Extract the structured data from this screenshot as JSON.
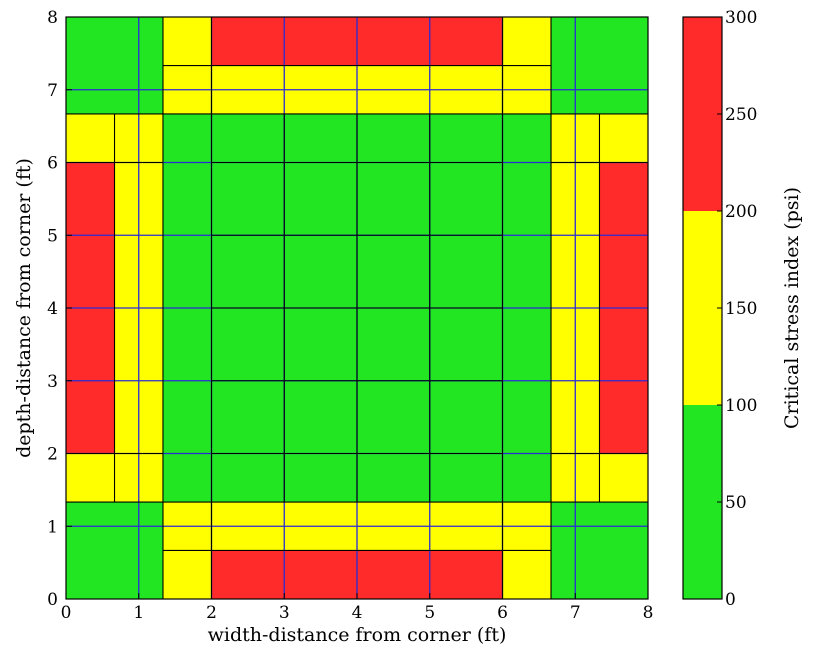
{
  "chart_data": {
    "type": "heatmap",
    "xlabel": "width-distance from corner (ft)",
    "ylabel": "depth-distance from corner (ft)",
    "xlim": [
      0,
      8
    ],
    "ylim": [
      0,
      8
    ],
    "x_ticks": [
      "0",
      "1",
      "2",
      "3",
      "4",
      "5",
      "6",
      "7",
      "8"
    ],
    "y_ticks": [
      "0",
      "1",
      "2",
      "3",
      "4",
      "5",
      "6",
      "7",
      "8"
    ],
    "grid": true,
    "grid_color": "#2b2bd6",
    "colors": {
      "green": "#22e622",
      "yellow": "#ffff00",
      "red": "#ff2a2a"
    },
    "colorbar": {
      "label": "Critical stress index (psi)",
      "range": [
        0,
        300
      ],
      "ticks": [
        "0",
        "50",
        "100",
        "150",
        "200",
        "250",
        "300"
      ],
      "bands": [
        {
          "from": 0,
          "to": 100,
          "color": "green"
        },
        {
          "from": 100,
          "to": 200,
          "color": "yellow"
        },
        {
          "from": 200,
          "to": 300,
          "color": "red"
        }
      ]
    },
    "cells": [
      {
        "x0": 0,
        "x1": 8,
        "y0": 0,
        "y1": 8,
        "level": "green"
      },
      {
        "x0": 1.333,
        "x1": 6.667,
        "y0": 0,
        "y1": 1.333,
        "level": "yellow"
      },
      {
        "x0": 2,
        "x1": 6,
        "y0": 0,
        "y1": 0.667,
        "level": "red"
      },
      {
        "x0": 1.333,
        "x1": 6.667,
        "y0": 6.667,
        "y1": 8,
        "level": "yellow"
      },
      {
        "x0": 2,
        "x1": 6,
        "y0": 7.333,
        "y1": 8,
        "level": "red"
      },
      {
        "x0": 0,
        "x1": 1.333,
        "y0": 1.333,
        "y1": 6.667,
        "level": "yellow"
      },
      {
        "x0": 0,
        "x1": 0.667,
        "y0": 2,
        "y1": 6,
        "level": "red"
      },
      {
        "x0": 6.667,
        "x1": 8,
        "y0": 1.333,
        "y1": 6.667,
        "level": "yellow"
      },
      {
        "x0": 7.333,
        "x1": 8,
        "y0": 2,
        "y1": 6,
        "level": "red"
      }
    ],
    "black_lines": [
      {
        "x1": 1.333,
        "y1": 0,
        "x2": 1.333,
        "y2": 8
      },
      {
        "x1": 6.667,
        "y1": 0,
        "x2": 6.667,
        "y2": 8
      },
      {
        "x1": 0,
        "y1": 1.333,
        "x2": 8,
        "y2": 1.333
      },
      {
        "x1": 0,
        "y1": 6.667,
        "x2": 8,
        "y2": 6.667
      },
      {
        "x1": 1.333,
        "y1": 0.667,
        "x2": 6.667,
        "y2": 0.667
      },
      {
        "x1": 1.333,
        "y1": 7.333,
        "x2": 6.667,
        "y2": 7.333
      },
      {
        "x1": 0.667,
        "y1": 1.333,
        "x2": 0.667,
        "y2": 6.667
      },
      {
        "x1": 7.333,
        "y1": 1.333,
        "x2": 7.333,
        "y2": 6.667
      },
      {
        "x1": 2,
        "y1": 0,
        "x2": 2,
        "y2": 1.333
      },
      {
        "x1": 6,
        "y1": 0,
        "x2": 6,
        "y2": 1.333
      },
      {
        "x1": 2,
        "y1": 6.667,
        "x2": 2,
        "y2": 8
      },
      {
        "x1": 6,
        "y1": 6.667,
        "x2": 6,
        "y2": 8
      },
      {
        "x1": 0,
        "y1": 2,
        "x2": 1.333,
        "y2": 2
      },
      {
        "x1": 0,
        "y1": 6,
        "x2": 1.333,
        "y2": 6
      },
      {
        "x1": 6.667,
        "y1": 2,
        "x2": 8,
        "y2": 2
      },
      {
        "x1": 6.667,
        "y1": 6,
        "x2": 8,
        "y2": 6
      },
      {
        "x1": 2,
        "y1": 2,
        "x2": 6,
        "y2": 2
      },
      {
        "x1": 2,
        "y1": 3,
        "x2": 6,
        "y2": 3
      },
      {
        "x1": 2,
        "y1": 4,
        "x2": 6,
        "y2": 4
      },
      {
        "x1": 2,
        "y1": 5,
        "x2": 6,
        "y2": 5
      },
      {
        "x1": 2,
        "y1": 6,
        "x2": 6,
        "y2": 6
      },
      {
        "x1": 3,
        "y1": 1.333,
        "x2": 3,
        "y2": 6.667
      },
      {
        "x1": 4,
        "y1": 1.333,
        "x2": 4,
        "y2": 6.667
      },
      {
        "x1": 5,
        "y1": 1.333,
        "x2": 5,
        "y2": 6.667
      },
      {
        "x1": 2,
        "y1": 1.333,
        "x2": 2,
        "y2": 6.667
      },
      {
        "x1": 6,
        "y1": 1.333,
        "x2": 6,
        "y2": 6.667
      }
    ]
  }
}
